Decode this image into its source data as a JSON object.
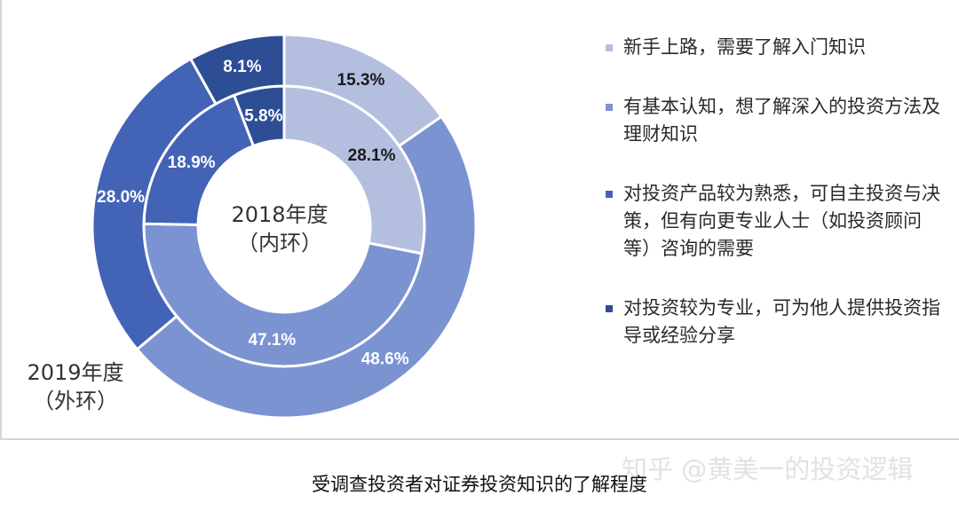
{
  "chart_data": {
    "type": "donut",
    "inner_ring": {
      "name": "2018年度",
      "caption": [
        "2018年度",
        "（内环）"
      ],
      "categories": [
        "新手上路，需要了解入门知识",
        "有基本认知，想了解深入的投资方法及理财知识",
        "对投资产品较为熟悉，可自主投资与决策，但有向更专业人士（如投资顾问等）咨询的需要",
        "对投资较为专业，可为他人提供投资指导或经验分享"
      ],
      "values": [
        28.1,
        47.1,
        18.9,
        5.8
      ],
      "labels": [
        "28.1%",
        "47.1%",
        "18.9%",
        "5.8%"
      ]
    },
    "outer_ring": {
      "name": "2019年度",
      "caption": [
        "2019年度",
        "（外环）"
      ],
      "values": [
        15.3,
        48.6,
        28.0,
        8.1
      ],
      "labels": [
        "15.3%",
        "48.6%",
        "28.0%",
        "8.1%"
      ]
    },
    "colors": [
      "#b4bfe0",
      "#7c93d2",
      "#4363b7",
      "#2d4d95"
    ],
    "label_colors": [
      "#1a1a1a",
      "#ffffff",
      "#ffffff",
      "#ffffff"
    ],
    "legend": {
      "position": "right",
      "entries": [
        "新手上路，需要了解入门知识",
        "有基本认知，想了解深入的投资方法及理财知识",
        "对投资产品较为熟悉，可自主投资与决策，但有向更专业人士（如投资顾问等）咨询的需要",
        "对投资较为专业，可为他人提供投资指导或经验分享"
      ]
    }
  },
  "figure_caption": "受调查投资者对证券投资知识的了解程度",
  "watermark": "知乎 @黄美一的投资逻辑"
}
